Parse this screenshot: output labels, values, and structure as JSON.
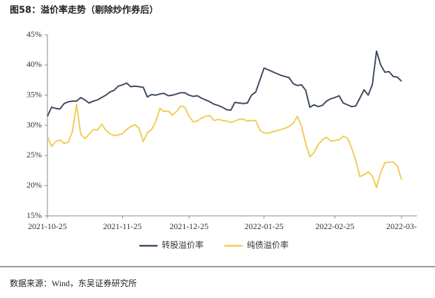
{
  "chart_data": {
    "type": "line",
    "title": "图58：溢价率走势（剔除炒作券后）",
    "source": "数据来源：Wind，东吴证券研究所",
    "categories": [
      "2021-10-25",
      null,
      null,
      null,
      null,
      null,
      null,
      null,
      null,
      null,
      null,
      null,
      null,
      null,
      null,
      null,
      null,
      null,
      "2021-11-25",
      null,
      null,
      null,
      null,
      null,
      null,
      null,
      null,
      null,
      null,
      null,
      null,
      null,
      null,
      null,
      "2021-12-25",
      null,
      null,
      null,
      null,
      null,
      null,
      null,
      null,
      null,
      null,
      null,
      null,
      null,
      null,
      null,
      null,
      null,
      "2022-01-25",
      null,
      null,
      null,
      null,
      null,
      null,
      null,
      null,
      null,
      null,
      null,
      null,
      null,
      null,
      null,
      null,
      "2022-02-25",
      null,
      null,
      null,
      null,
      null,
      null,
      null,
      null,
      null,
      null,
      null,
      null,
      null,
      null,
      null,
      "2022-03-"
    ],
    "series": [
      {
        "name": "转股溢价率",
        "color": "#3e4a5e",
        "values": [
          31.5,
          33.0,
          32.8,
          32.7,
          33.6,
          33.9,
          34.0,
          34.0,
          34.6,
          34.2,
          33.7,
          34.0,
          34.2,
          34.6,
          35.0,
          35.5,
          35.8,
          36.5,
          36.7,
          37.0,
          36.4,
          36.5,
          36.4,
          36.3,
          34.7,
          35.1,
          35.0,
          35.2,
          35.3,
          34.9,
          35.0,
          35.2,
          35.4,
          35.4,
          35.0,
          34.8,
          34.9,
          34.5,
          34.2,
          33.9,
          33.5,
          33.3,
          33.0,
          32.6,
          32.5,
          33.8,
          33.7,
          33.6,
          33.7,
          35.0,
          35.5,
          37.5,
          39.5,
          39.2,
          38.9,
          38.6,
          38.3,
          38.1,
          37.9,
          36.9,
          36.6,
          36.7,
          35.8,
          33.0,
          33.4,
          33.1,
          33.3,
          34.0,
          34.4,
          34.6,
          34.9,
          33.7,
          33.4,
          33.1,
          33.2,
          34.5,
          35.9,
          35.0,
          36.8,
          42.3,
          40.0,
          38.8,
          38.9,
          38.1,
          38.0,
          37.3
        ]
      },
      {
        "name": "纯债溢价率",
        "color": "#f2cc55",
        "values": [
          28.2,
          26.5,
          27.3,
          27.6,
          27.0,
          27.2,
          29.0,
          33.5,
          28.5,
          27.8,
          28.5,
          29.3,
          29.2,
          30.2,
          29.2,
          28.6,
          28.3,
          28.4,
          28.6,
          29.3,
          29.8,
          30.1,
          29.5,
          27.3,
          28.8,
          29.3,
          30.6,
          32.8,
          32.3,
          32.4,
          31.7,
          32.3,
          33.2,
          33.0,
          31.5,
          30.6,
          30.7,
          31.2,
          31.5,
          31.6,
          30.8,
          31.0,
          30.8,
          30.7,
          30.5,
          30.7,
          31.0,
          31.0,
          30.7,
          30.8,
          30.8,
          29.2,
          28.7,
          28.7,
          28.9,
          29.1,
          29.3,
          29.5,
          29.8,
          30.3,
          31.5,
          29.8,
          27.0,
          24.8,
          25.5,
          26.8,
          27.6,
          28.0,
          27.4,
          27.5,
          27.6,
          28.2,
          27.9,
          26.3,
          24.2,
          21.5,
          21.8,
          22.3,
          21.6,
          19.7,
          22.2,
          23.8,
          23.9,
          23.9,
          23.3,
          21.0
        ]
      }
    ],
    "ylim": [
      15,
      45
    ],
    "yticks": [
      {
        "value": 15,
        "label": "15%"
      },
      {
        "value": 20,
        "label": "20%"
      },
      {
        "value": 25,
        "label": "25%"
      },
      {
        "value": 30,
        "label": "30%"
      },
      {
        "value": 35,
        "label": "35%"
      },
      {
        "value": 40,
        "label": "40%"
      },
      {
        "value": 45,
        "label": "45%"
      }
    ],
    "grid": false
  }
}
